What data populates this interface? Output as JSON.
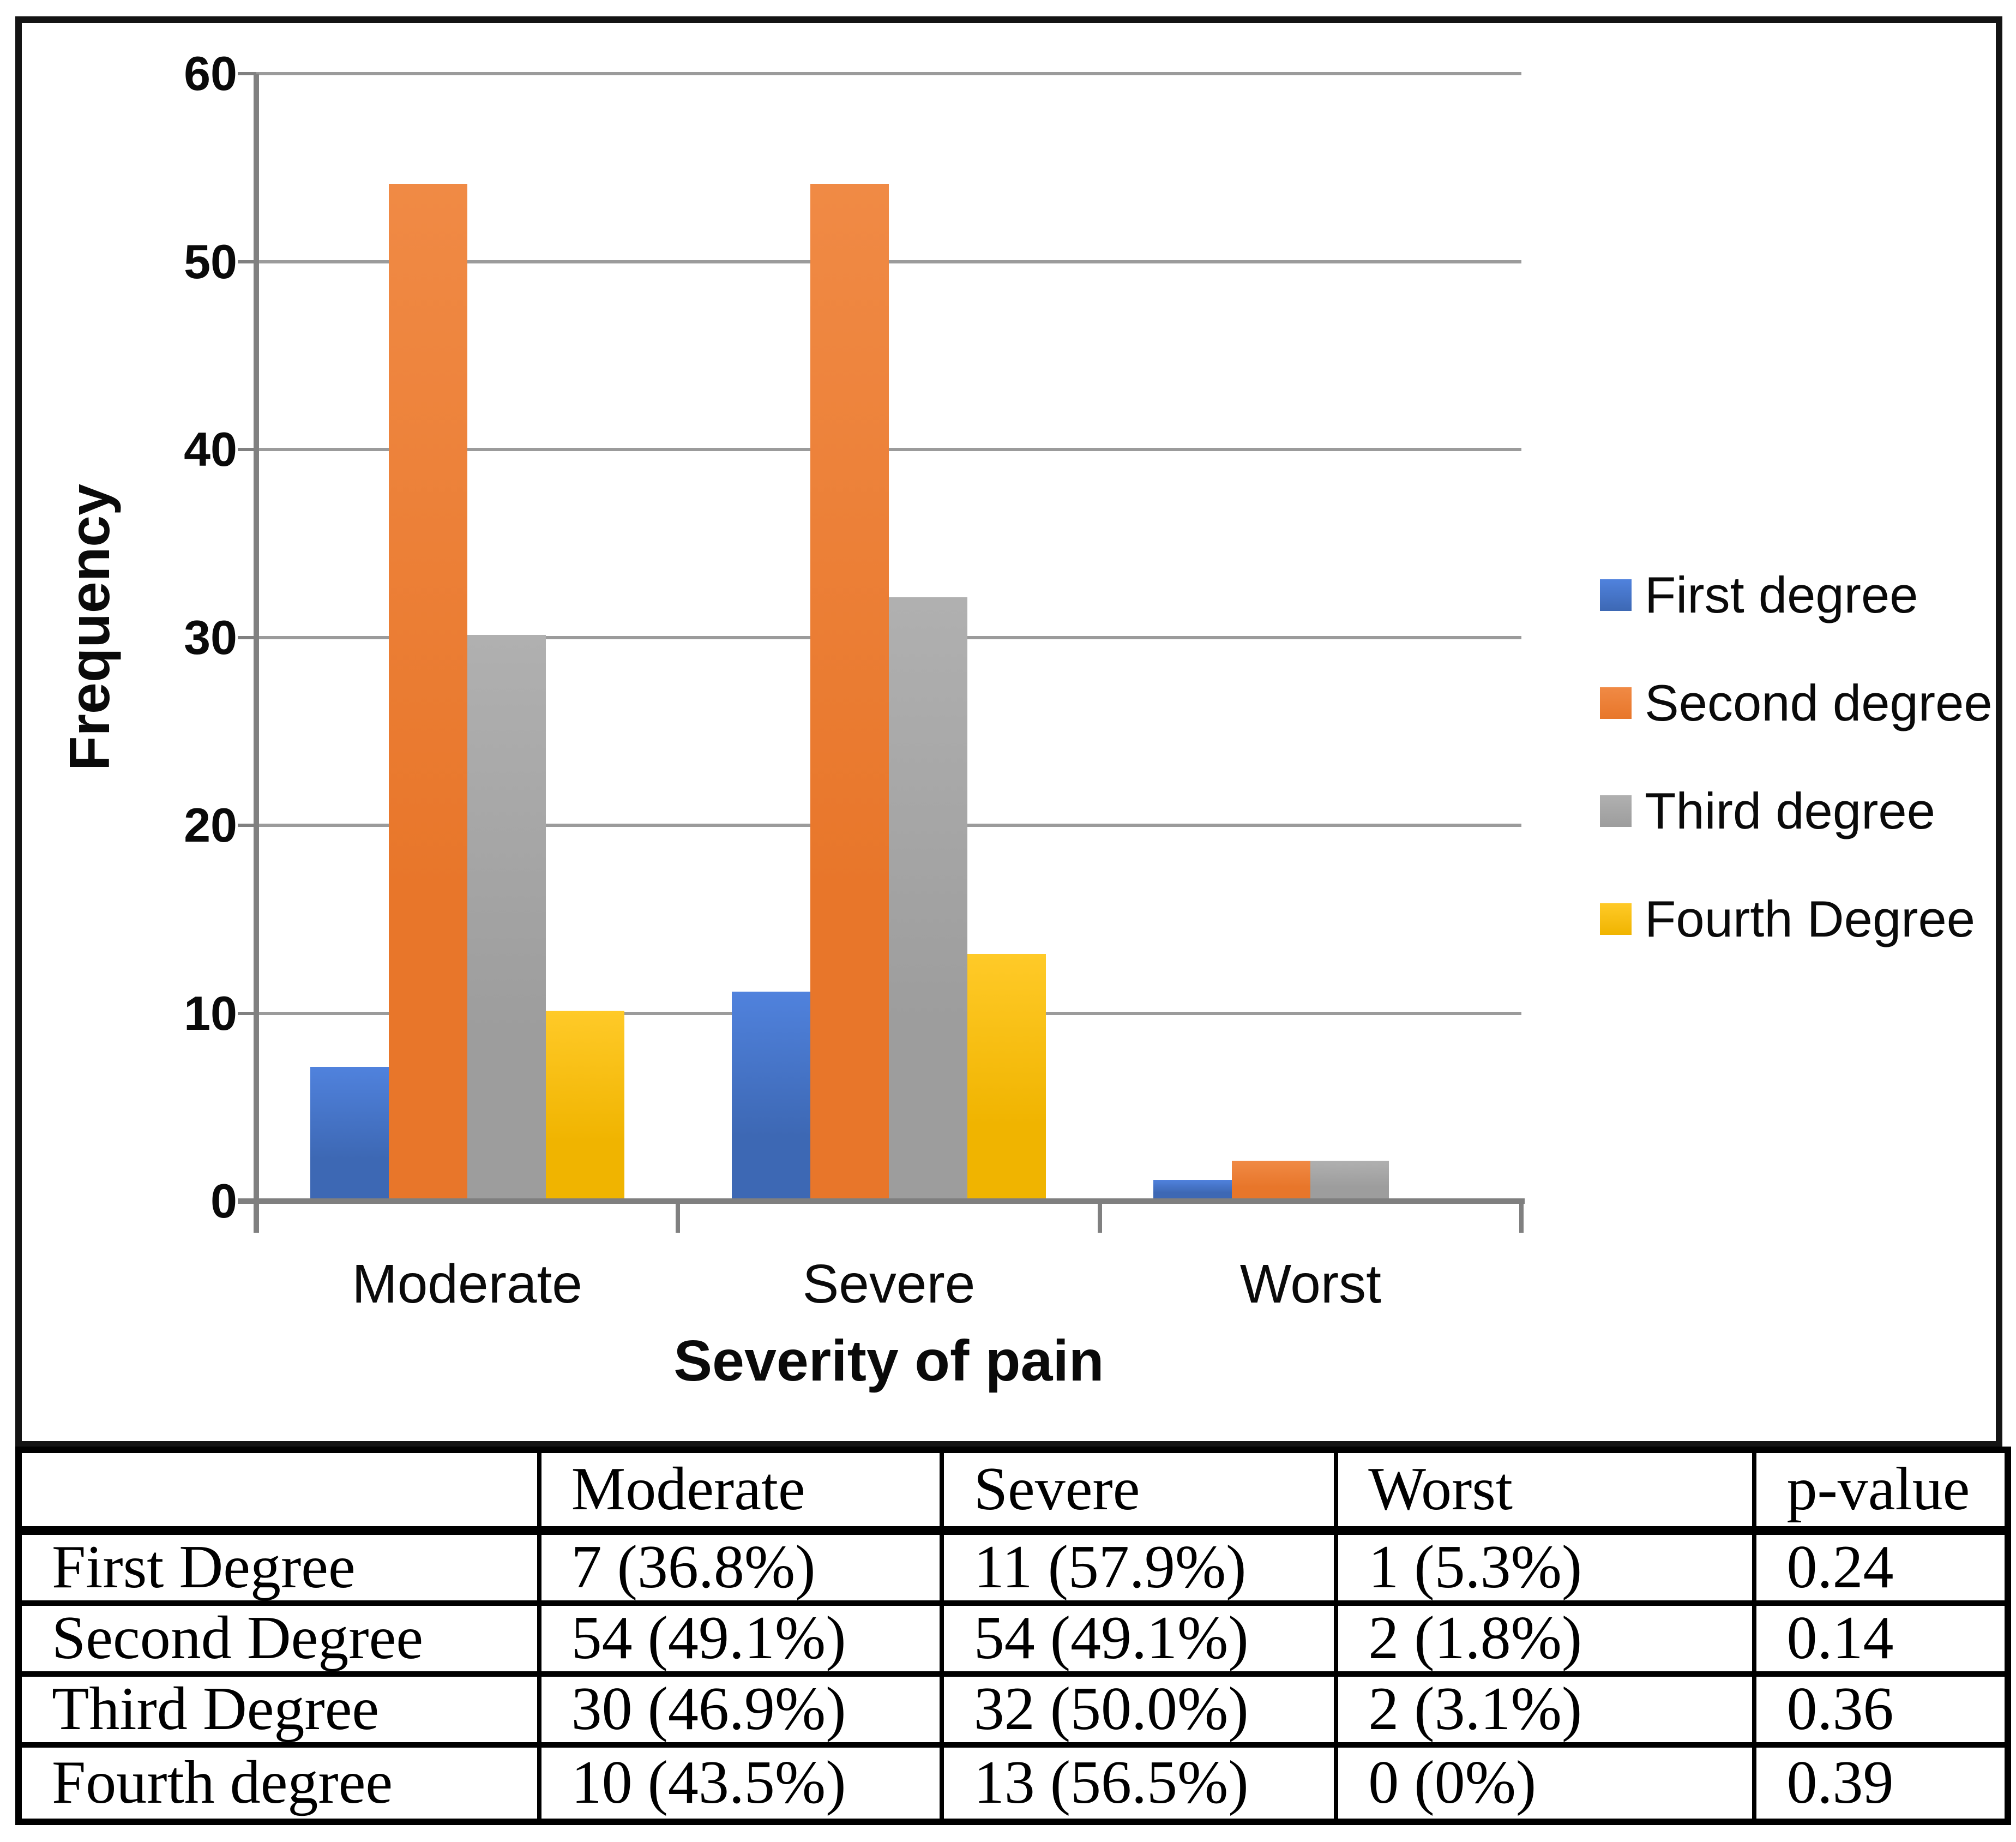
{
  "chart_data": {
    "type": "bar",
    "categories": [
      "Moderate",
      "Severe",
      "Worst"
    ],
    "series": [
      {
        "name": "First degree",
        "color": "#3d68b4",
        "color_top": "#5082dd",
        "values": [
          7,
          11,
          1
        ]
      },
      {
        "name": "Second degree",
        "color": "#e8762a",
        "color_top": "#f08a45",
        "values": [
          54,
          54,
          2
        ]
      },
      {
        "name": "Third degree",
        "color": "#9d9d9d",
        "color_top": "#b0b0b0",
        "values": [
          30,
          32,
          2
        ]
      },
      {
        "name": "Fourth Degree",
        "color": "#f0b400",
        "color_top": "#ffca28",
        "values": [
          10,
          13,
          0
        ]
      }
    ],
    "xlabel": "Severity of pain",
    "ylabel": "Frequency",
    "ylim": [
      0,
      60
    ],
    "yticks": [
      0,
      10,
      20,
      30,
      40,
      50,
      60
    ],
    "grid": true,
    "legend_position": "right",
    "axis_color": "#808080",
    "gridline_color": "#9b9b9b"
  },
  "table": {
    "headers": [
      "",
      "Moderate",
      "Severe",
      "Worst",
      "p-value"
    ],
    "rows": [
      [
        "First Degree",
        "7 (36.8%)",
        "11 (57.9%)",
        "1 (5.3%)",
        "0.24"
      ],
      [
        "Second Degree",
        "54 (49.1%)",
        "54 (49.1%)",
        "2 (1.8%)",
        "0.14"
      ],
      [
        "Third Degree",
        "30 (46.9%)",
        "32 (50.0%)",
        "2 (3.1%)",
        "0.36"
      ],
      [
        "Fourth degree",
        "10 (43.5%)",
        "13 (56.5%)",
        "0 (0%)",
        "0.39"
      ]
    ]
  }
}
